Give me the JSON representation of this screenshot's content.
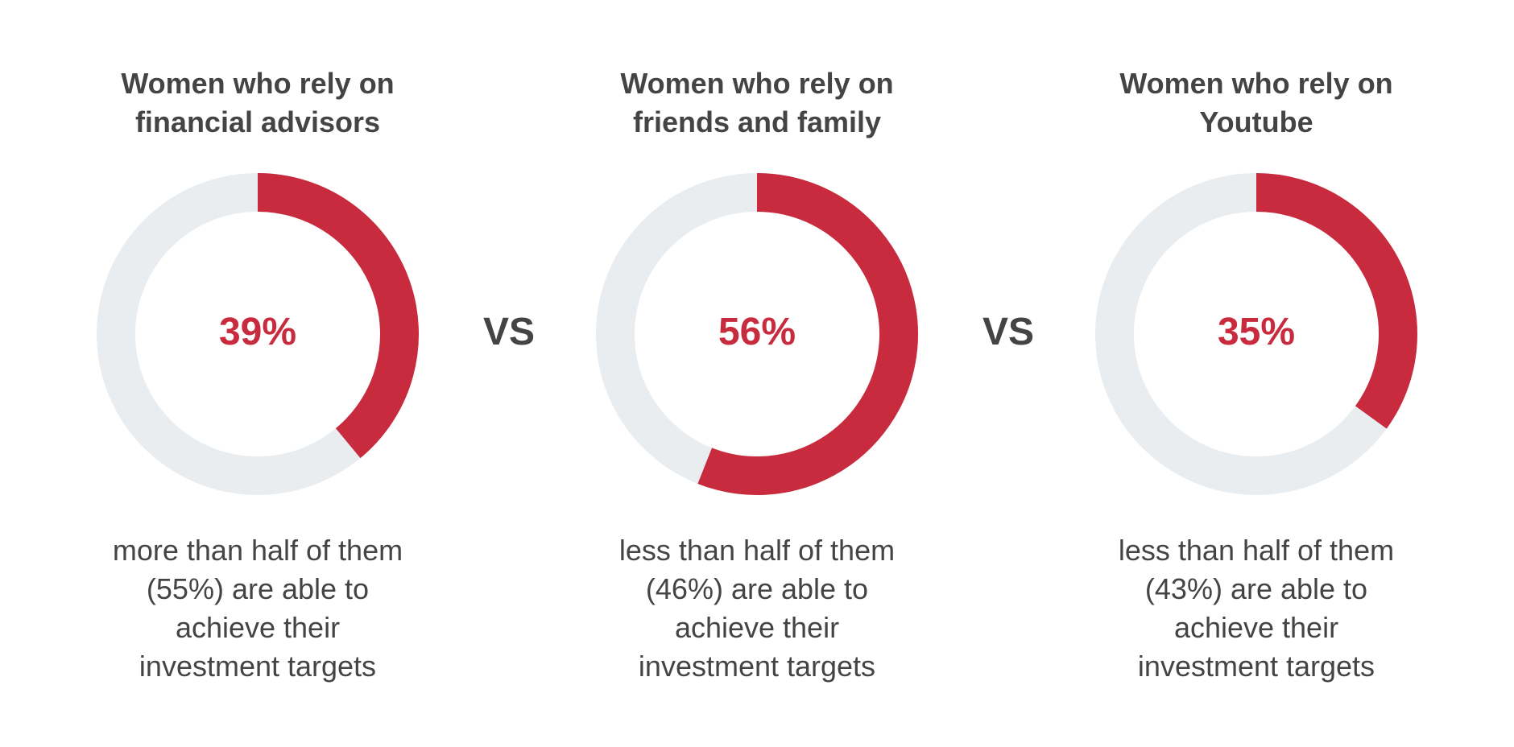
{
  "colors": {
    "accent": "#c92b3e",
    "track": "#eaedf0",
    "text": "#444444"
  },
  "vs_label": "VS",
  "chart_data": [
    {
      "type": "pie",
      "title": "Women who rely on\nfinancial advisors",
      "value": 39,
      "value_label": "39%",
      "description": "more than half of them\n(55%) are able to\nachieve their\ninvestment targets"
    },
    {
      "type": "pie",
      "title": "Women who rely on\nfriends and family",
      "value": 56,
      "value_label": "56%",
      "description": "less than half of them\n(46%) are able to\nachieve their\ninvestment targets"
    },
    {
      "type": "pie",
      "title": "Women who rely on\nYoutube",
      "value": 35,
      "value_label": "35%",
      "description": "less than half of them\n(43%) are able to\nachieve their\ninvestment targets"
    }
  ]
}
